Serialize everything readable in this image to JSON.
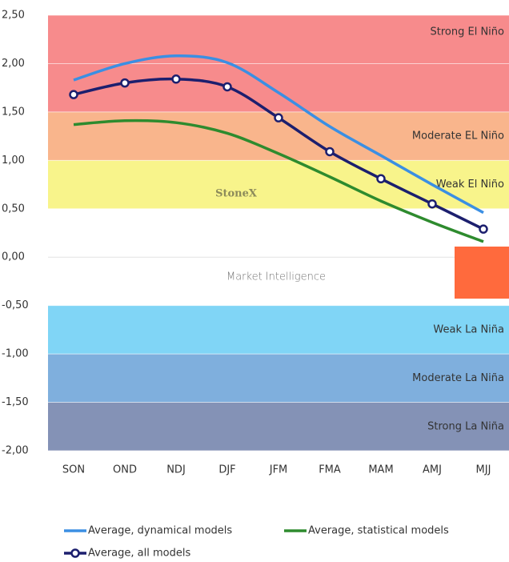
{
  "chart_data": {
    "type": "line",
    "categories": [
      "SON",
      "OND",
      "NDJ",
      "DJF",
      "JFM",
      "FMA",
      "MAM",
      "AMJ",
      "MJJ"
    ],
    "series": [
      {
        "name": "Average, dynamical models",
        "color": "#3b8fe3",
        "values": [
          1.83,
          2.0,
          2.08,
          2.01,
          1.7,
          1.35,
          1.05,
          0.75,
          0.46
        ]
      },
      {
        "name": "Average, statistical models",
        "color": "#2e8b2e",
        "values": [
          1.37,
          1.41,
          1.39,
          1.28,
          1.07,
          0.83,
          0.58,
          0.36,
          0.16
        ]
      },
      {
        "name": "Average, all models",
        "color": "#1c1f6e",
        "markers": true,
        "values": [
          1.68,
          1.8,
          1.84,
          1.76,
          1.44,
          1.09,
          0.81,
          0.55,
          0.29
        ]
      }
    ],
    "bands": [
      {
        "label": "Strong El Niño",
        "from": 1.5,
        "to": 2.5,
        "color": "#f78b8c"
      },
      {
        "label": "Moderate EL Niño",
        "from": 1.0,
        "to": 1.5,
        "color": "#f9b58c"
      },
      {
        "label": "Weak El Niño",
        "from": 0.5,
        "to": 1.0,
        "color": "#f8f48b"
      },
      {
        "label": "Weak La Niña",
        "from": -1.0,
        "to": -0.5,
        "color": "#80d5f6"
      },
      {
        "label": "Moderate La Niña",
        "from": -1.5,
        "to": -1.0,
        "color": "#7fafdd"
      },
      {
        "label": "Strong La Niña",
        "from": -2.0,
        "to": -1.5,
        "color": "#8492b6"
      }
    ],
    "watermark": [
      "StoneX",
      "Market Intelligence"
    ],
    "ylim": [
      -2.0,
      2.5
    ],
    "yticks": [
      {
        "value": 2.5,
        "label": "2,50"
      },
      {
        "value": 2.0,
        "label": "2,00"
      },
      {
        "value": 1.5,
        "label": "1,50"
      },
      {
        "value": 1.0,
        "label": "1,00"
      },
      {
        "value": 0.5,
        "label": "0,50"
      },
      {
        "value": 0.0,
        "label": "0,00"
      },
      {
        "value": -0.5,
        "label": "-0,50"
      },
      {
        "value": -1.0,
        "label": "-1,00"
      },
      {
        "value": -1.5,
        "label": "-1,50"
      },
      {
        "value": -2.0,
        "label": "-2,00"
      }
    ],
    "grid": true
  }
}
